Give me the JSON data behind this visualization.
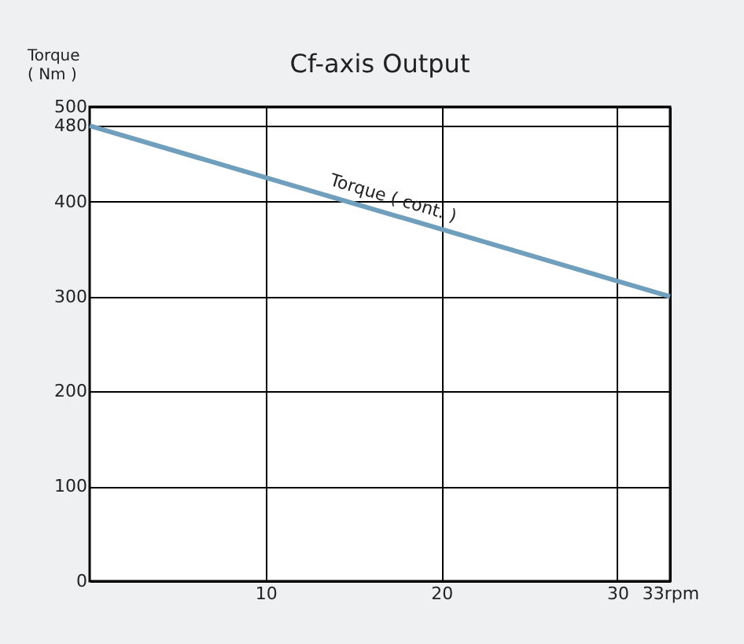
{
  "chart_data": {
    "type": "line",
    "title": "Cf-axis Output",
    "ylabel": "Torque\n( Nm )",
    "x": [
      0,
      33
    ],
    "series": [
      {
        "color": "#6f9fbc",
        "values": [
          480,
          300
        ]
      }
    ],
    "xlim": [
      0,
      33
    ],
    "xticks": [
      10,
      20,
      30,
      {
        "value": 33,
        "label": "33rpm"
      }
    ],
    "ylim": [
      0,
      500
    ],
    "yticks": [
      0,
      100,
      200,
      300,
      400,
      480,
      500
    ],
    "grid": true,
    "marker": "none",
    "line_style": "solid",
    "annotations": [
      {
        "text": "Torque ( cont. )",
        "x": 17,
        "y": 387
      }
    ]
  }
}
